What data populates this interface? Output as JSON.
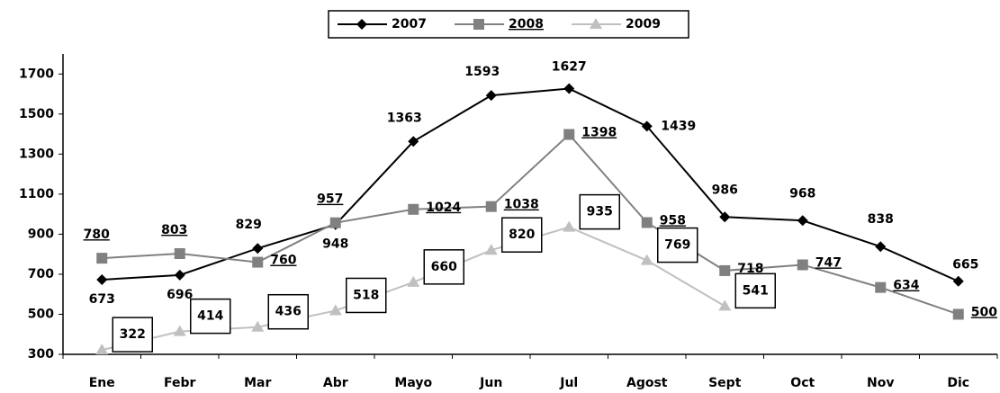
{
  "chart_data": {
    "type": "line",
    "categories": [
      "Ene",
      "Febr",
      "Mar",
      "Abr",
      "Mayo",
      "Jun",
      "Jul",
      "Agost",
      "Sept",
      "Oct",
      "Nov",
      "Dic"
    ],
    "series": [
      {
        "name": "2007",
        "color": "#000000",
        "marker": "diamond",
        "values": [
          673,
          696,
          829,
          948,
          1363,
          1593,
          1627,
          1439,
          986,
          968,
          838,
          665
        ]
      },
      {
        "name": "2008",
        "color": "#808080",
        "marker": "square",
        "values": [
          780,
          803,
          760,
          957,
          1024,
          1038,
          1398,
          958,
          718,
          747,
          634,
          500
        ]
      },
      {
        "name": "2009",
        "color": "#c0c0c0",
        "marker": "triangle",
        "values": [
          322,
          414,
          436,
          518,
          660,
          820,
          935,
          769,
          541,
          null,
          null,
          null
        ]
      }
    ],
    "ylim": [
      300,
      1800
    ],
    "yticks": [
      300,
      500,
      700,
      900,
      1100,
      1300,
      1500,
      1700
    ],
    "legend": "top"
  }
}
